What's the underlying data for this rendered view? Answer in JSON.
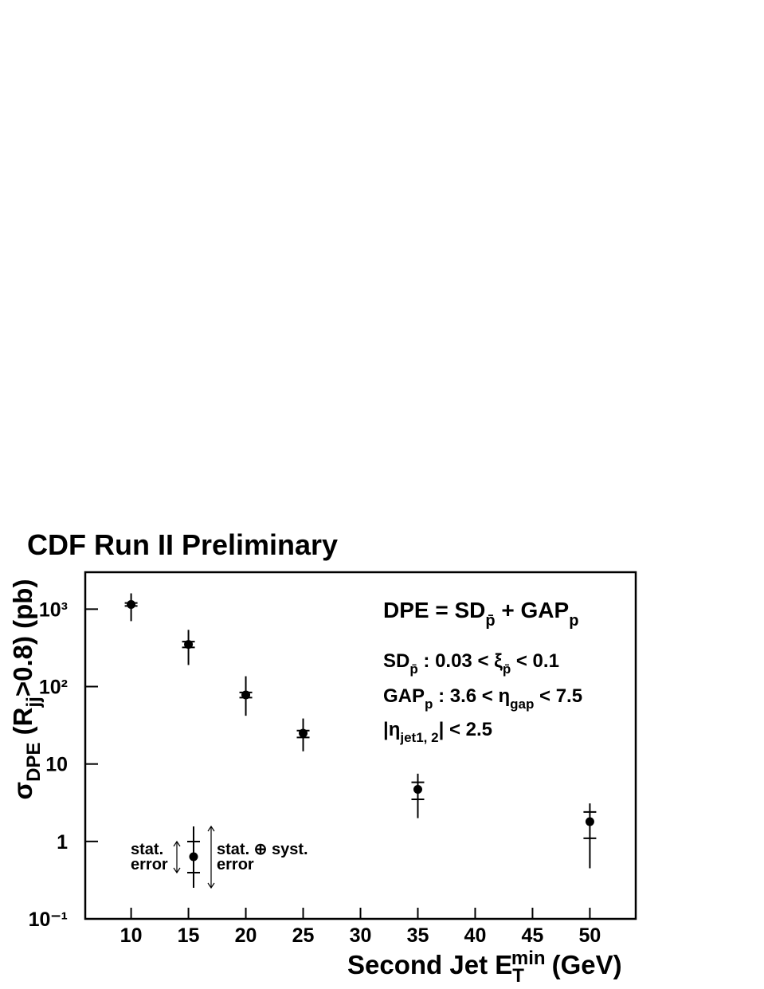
{
  "chart_data": {
    "type": "errorbar",
    "title": "CDF Run II Preliminary",
    "x_label": [
      "Second Jet E",
      "T",
      "min",
      "(GeV)"
    ],
    "y_label": [
      "σ",
      "DPE",
      " (R",
      "jj",
      ">0.8) (pb)"
    ],
    "xlim": [
      6,
      54
    ],
    "xticks": [
      10,
      15,
      20,
      25,
      30,
      35,
      40,
      45,
      50
    ],
    "ylim": [
      0.1,
      3000
    ],
    "ylog": true,
    "yticks": [
      {
        "value": 0.1,
        "label": "10⁻¹"
      },
      1,
      10,
      {
        "value": 100,
        "label": "10²"
      },
      {
        "value": 1000,
        "label": "10³"
      }
    ],
    "series": [
      {
        "name": "DPE",
        "color": "#000000",
        "x": [
          10,
          15,
          20,
          25,
          35,
          50
        ],
        "values": [
          1150,
          350,
          78,
          25,
          4.7,
          1.8
        ],
        "stat_low": [
          1100,
          320,
          72,
          22,
          3.5,
          1.1
        ],
        "stat_high": [
          1200,
          380,
          84,
          27,
          5.8,
          2.4
        ],
        "err_low": [
          700,
          190,
          42,
          14.6,
          2.0,
          0.45
        ],
        "err_high": [
          1600,
          540,
          136,
          38.7,
          7.5,
          3.1
        ]
      }
    ],
    "annotations": {
      "definition": [
        "DPE = SD",
        "p̄",
        " + GAP",
        "p"
      ],
      "sd_cut": [
        "SD",
        "p̄",
        " : 0.03 < ξ",
        "p̄",
        " < 0.1"
      ],
      "gap_cut": [
        "GAP",
        "p",
        " : 3.6 < η",
        "gap",
        " < 7.5"
      ],
      "eta_cut": [
        "|η",
        "jet1, 2",
        "| < 2.5"
      ],
      "stat_legend": [
        "stat.",
        "error"
      ],
      "total_legend": [
        "stat. ⊕ syst.",
        "error"
      ]
    }
  }
}
